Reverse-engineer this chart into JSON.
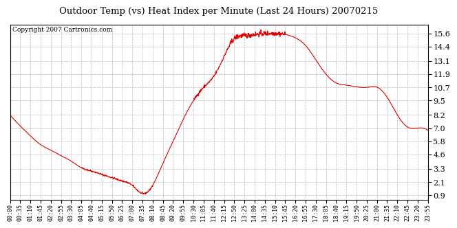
{
  "title": "Outdoor Temp (vs) Heat Index per Minute (Last 24 Hours) 20070215",
  "copyright_text": "Copyright 2007 Cartronics.com",
  "line_color": "#dd0000",
  "bg_color": "#ffffff",
  "plot_bg_color": "#ffffff",
  "grid_color": "#bbbbbb",
  "yticks": [
    0.9,
    2.1,
    3.3,
    4.6,
    5.8,
    7.0,
    8.2,
    9.5,
    10.7,
    11.9,
    13.1,
    14.4,
    15.6
  ],
  "ylim": [
    0.5,
    16.4
  ],
  "xtick_labels": [
    "00:00",
    "00:35",
    "01:10",
    "01:45",
    "02:20",
    "02:55",
    "03:30",
    "04:05",
    "04:40",
    "05:15",
    "05:50",
    "06:25",
    "07:00",
    "07:35",
    "08:10",
    "08:45",
    "09:20",
    "09:55",
    "10:30",
    "11:05",
    "11:40",
    "12:15",
    "12:50",
    "13:25",
    "14:00",
    "14:35",
    "15:10",
    "15:45",
    "16:20",
    "16:55",
    "17:30",
    "18:05",
    "18:40",
    "19:15",
    "19:50",
    "20:25",
    "21:00",
    "21:35",
    "22:10",
    "22:45",
    "23:20",
    "23:55"
  ],
  "curve_x": [
    0,
    1,
    2,
    3,
    4,
    5,
    6,
    7,
    8,
    9,
    10,
    11,
    12,
    13,
    14,
    15,
    16,
    17,
    18,
    19,
    20,
    21,
    22,
    23,
    24,
    25,
    26,
    27,
    28,
    29,
    30,
    31,
    32,
    33,
    34,
    35,
    36,
    37,
    38,
    39,
    40,
    41
  ],
  "curve_y": [
    8.2,
    7.2,
    6.3,
    5.5,
    5.0,
    4.5,
    4.0,
    3.4,
    3.1,
    2.8,
    2.5,
    2.2,
    1.8,
    1.05,
    1.8,
    3.8,
    5.8,
    7.8,
    9.5,
    10.7,
    11.7,
    13.5,
    15.1,
    15.4,
    15.5,
    15.58,
    15.6,
    15.5,
    15.2,
    14.5,
    13.2,
    11.9,
    11.1,
    10.9,
    10.75,
    10.7,
    10.72,
    9.8,
    8.2,
    7.1,
    7.0,
    6.8
  ]
}
